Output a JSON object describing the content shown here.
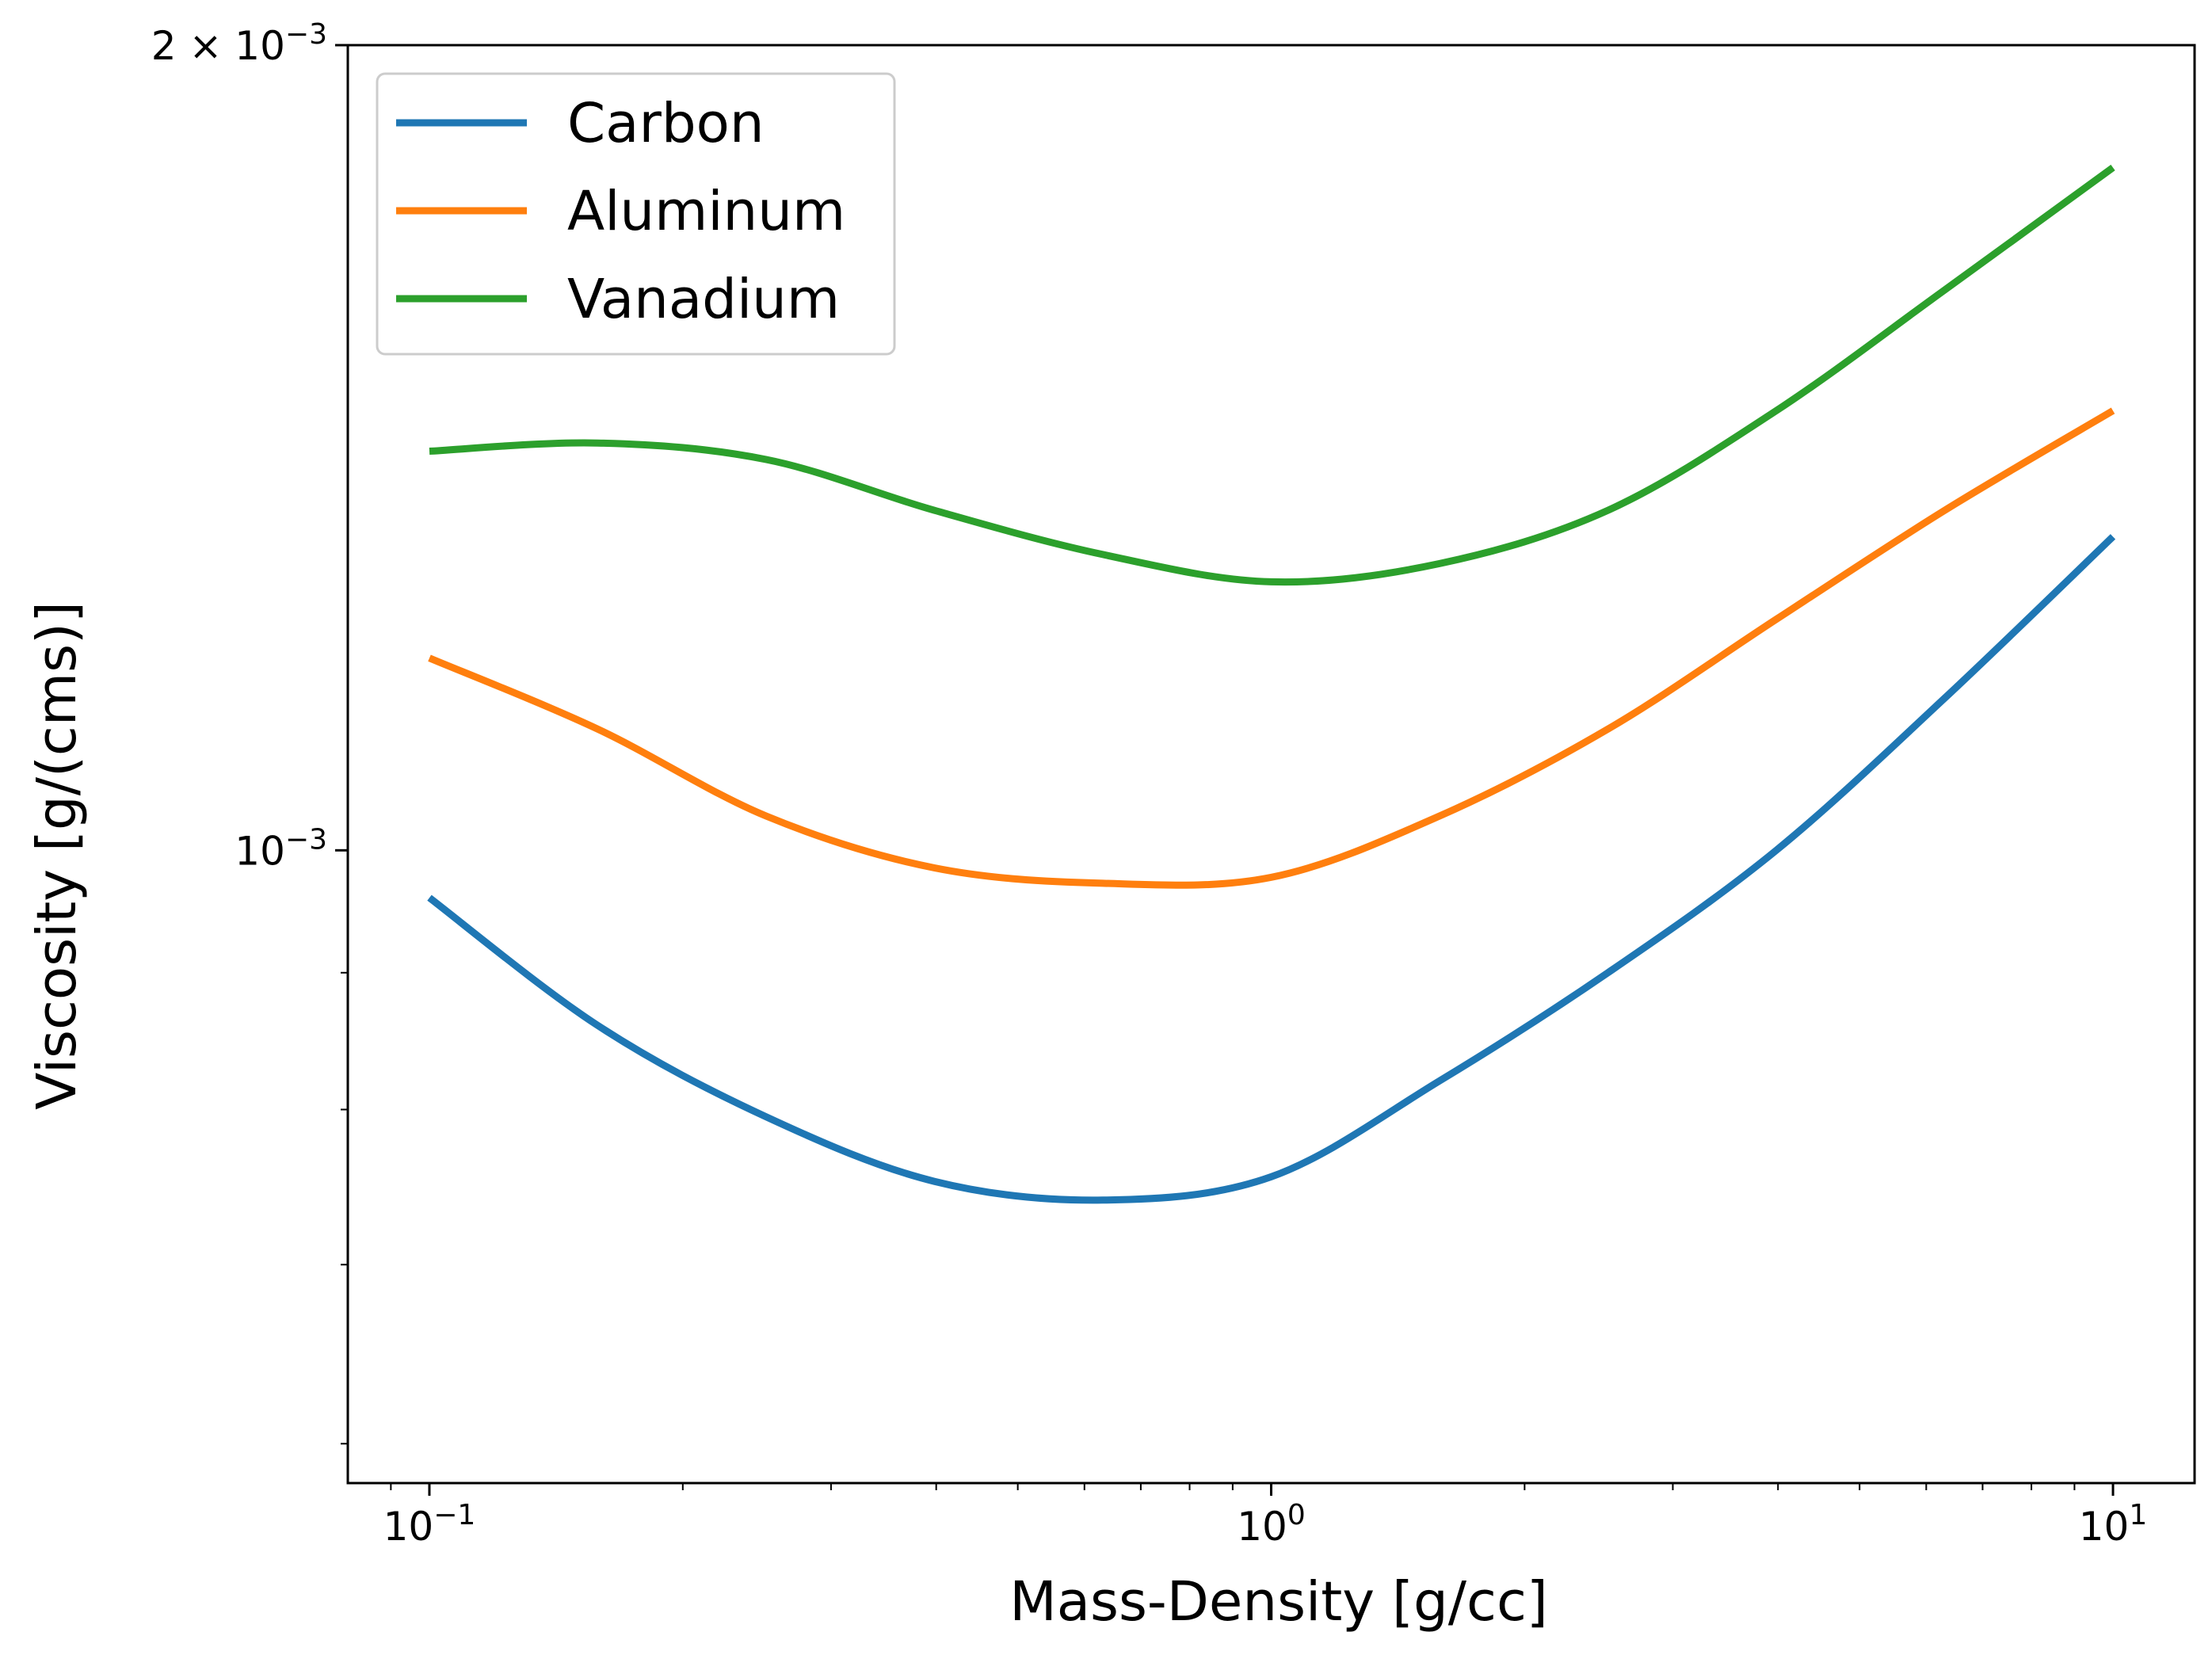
{
  "chart_data": {
    "type": "line",
    "xlabel": "Mass-Density [g/cc]",
    "ylabel": "Viscosity [g/(cms)]",
    "xscale": "log",
    "yscale": "log",
    "xlim": [
      0.08,
      12.5
    ],
    "ylim": [
      0.00058,
      0.002
    ],
    "grid": false,
    "legend_position": "upper-left",
    "x_ticks": [
      {
        "value": 0.1,
        "base": "10",
        "exponent": "−1"
      },
      {
        "value": 1,
        "base": "10",
        "exponent": "0"
      },
      {
        "value": 10,
        "base": "10",
        "exponent": "1"
      }
    ],
    "y_ticks": [
      {
        "value": 0.001,
        "prefix": "",
        "base": "10",
        "exponent": "−3"
      },
      {
        "value": 0.002,
        "prefix": "2 × ",
        "base": "10",
        "exponent": "−3"
      }
    ],
    "y_minor_ticks": [
      0.0006,
      0.0007,
      0.0008,
      0.0009
    ],
    "x": [
      0.1,
      0.1585,
      0.2512,
      0.3981,
      0.631,
      1.0,
      1.585,
      2.512,
      3.981,
      6.31,
      10.0
    ],
    "series": [
      {
        "name": "Carbon",
        "color": "#1f77b4",
        "values": [
          0.00096,
          0.00086,
          0.000795,
          0.000752,
          0.00074,
          0.000755,
          0.00082,
          0.0009,
          0.001,
          0.00114,
          0.00131
        ]
      },
      {
        "name": "Aluminum",
        "color": "#ff7f0e",
        "values": [
          0.00118,
          0.00111,
          0.00103,
          0.000985,
          0.000972,
          0.000977,
          0.00103,
          0.00111,
          0.00122,
          0.00134,
          0.00146
        ]
      },
      {
        "name": "Vanadium",
        "color": "#2ca02c",
        "values": [
          0.00141,
          0.00142,
          0.0014,
          0.00134,
          0.00129,
          0.00126,
          0.00128,
          0.00134,
          0.00146,
          0.00162,
          0.0018
        ]
      }
    ]
  }
}
